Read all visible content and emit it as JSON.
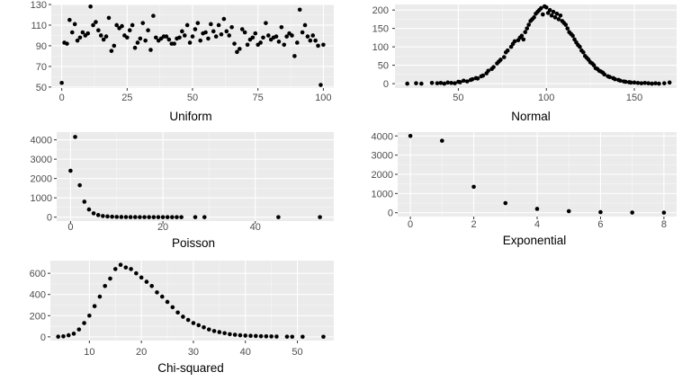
{
  "style": {
    "panel_bg": "#ebebeb",
    "grid_major": "#ffffff",
    "point_color": "#000000",
    "tick_text": "#4d4d4d"
  },
  "chart_data": [
    {
      "id": "uniform",
      "type": "scatter",
      "xlabel": "Uniform",
      "ylabel": "",
      "xlim": [
        -4,
        104
      ],
      "ylim": [
        49,
        130
      ],
      "xticks": [
        0,
        25,
        50,
        75,
        100
      ],
      "yticks": [
        50,
        70,
        90,
        110,
        130
      ],
      "grid": true,
      "x": [
        0,
        1,
        2,
        3,
        4,
        5,
        6,
        7,
        8,
        9,
        10,
        11,
        12,
        13,
        14,
        15,
        16,
        17,
        18,
        19,
        20,
        21,
        22,
        23,
        24,
        25,
        26,
        27,
        28,
        29,
        30,
        31,
        32,
        33,
        34,
        35,
        36,
        37,
        38,
        39,
        40,
        41,
        42,
        43,
        44,
        45,
        46,
        47,
        48,
        49,
        50,
        51,
        52,
        53,
        54,
        55,
        56,
        57,
        58,
        59,
        60,
        61,
        62,
        63,
        64,
        65,
        66,
        67,
        68,
        69,
        70,
        71,
        72,
        73,
        74,
        75,
        76,
        77,
        78,
        79,
        80,
        81,
        82,
        83,
        84,
        85,
        86,
        87,
        88,
        89,
        90,
        91,
        92,
        93,
        94,
        95,
        96,
        97,
        98,
        99,
        100
      ],
      "y": [
        54,
        93,
        92,
        115,
        103,
        111,
        95,
        98,
        103,
        100,
        102,
        128,
        110,
        113,
        105,
        100,
        96,
        99,
        117,
        85,
        90,
        110,
        107,
        109,
        100,
        98,
        105,
        110,
        88,
        93,
        97,
        112,
        95,
        105,
        86,
        119,
        98,
        95,
        97,
        99,
        99,
        96,
        92,
        92,
        97,
        98,
        104,
        100,
        110,
        93,
        99,
        106,
        112,
        95,
        102,
        103,
        97,
        111,
        104,
        99,
        110,
        101,
        116,
        104,
        100,
        108,
        92,
        84,
        87,
        106,
        103,
        91,
        96,
        98,
        102,
        91,
        93,
        98,
        112,
        100,
        96,
        98,
        99,
        94,
        108,
        91,
        99,
        102,
        100,
        80,
        93,
        125,
        103,
        110,
        99,
        95,
        100,
        95,
        90,
        52,
        91
      ]
    },
    {
      "id": "normal",
      "type": "scatter",
      "xlabel": "Normal",
      "ylabel": "",
      "xlim": [
        14,
        174
      ],
      "ylim": [
        -12,
        215
      ],
      "xticks": [
        50,
        100,
        150
      ],
      "yticks": [
        0,
        50,
        100,
        150,
        200
      ],
      "grid": true,
      "x": [
        21,
        26,
        29,
        35,
        38,
        40,
        42,
        44,
        46,
        48,
        50,
        51,
        53,
        55,
        57,
        58,
        60,
        61,
        63,
        64,
        66,
        67,
        69,
        70,
        72,
        73,
        74,
        76,
        77,
        78,
        80,
        81,
        82,
        84,
        85,
        86,
        87,
        88,
        89,
        90,
        91,
        92,
        93,
        94,
        95,
        96,
        97,
        98,
        99,
        100,
        101,
        102,
        103,
        104,
        105,
        106,
        107,
        108,
        109,
        110,
        111,
        112,
        113,
        114,
        115,
        116,
        117,
        118,
        119,
        120,
        121,
        122,
        123,
        124,
        125,
        126,
        127,
        128,
        129,
        130,
        131,
        132,
        133,
        135,
        136,
        138,
        139,
        141,
        142,
        144,
        145,
        147,
        148,
        150,
        152,
        154,
        156,
        158,
        160,
        162,
        164,
        167,
        170
      ],
      "y": [
        0,
        1,
        0,
        2,
        1,
        2,
        0,
        3,
        2,
        1,
        5,
        4,
        8,
        6,
        10,
        12,
        15,
        14,
        20,
        22,
        28,
        35,
        40,
        45,
        55,
        60,
        65,
        72,
        85,
        90,
        100,
        108,
        115,
        118,
        125,
        130,
        120,
        140,
        150,
        160,
        170,
        175,
        180,
        190,
        195,
        200,
        205,
        188,
        210,
        207,
        192,
        200,
        185,
        195,
        180,
        190,
        175,
        185,
        170,
        165,
        160,
        150,
        140,
        135,
        130,
        120,
        112,
        105,
        100,
        90,
        85,
        75,
        70,
        65,
        58,
        55,
        50,
        42,
        40,
        35,
        33,
        30,
        25,
        20,
        18,
        15,
        12,
        10,
        8,
        6,
        5,
        4,
        3,
        3,
        2,
        1,
        2,
        1,
        0,
        1,
        0,
        1,
        3
      ]
    },
    {
      "id": "poisson",
      "type": "scatter",
      "xlabel": "Poisson",
      "ylabel": "",
      "xlim": [
        -3,
        57
      ],
      "ylim": [
        -200,
        4400
      ],
      "xticks": [
        0,
        20,
        40
      ],
      "yticks": [
        0,
        1000,
        2000,
        3000,
        4000
      ],
      "grid": true,
      "x": [
        0,
        1,
        2,
        3,
        4,
        5,
        6,
        7,
        8,
        9,
        10,
        11,
        12,
        13,
        14,
        15,
        16,
        17,
        18,
        19,
        20,
        21,
        22,
        23,
        24,
        27,
        29,
        45,
        54
      ],
      "y": [
        2400,
        4150,
        1650,
        800,
        400,
        200,
        110,
        60,
        40,
        25,
        15,
        10,
        8,
        5,
        4,
        3,
        3,
        2,
        2,
        1,
        1,
        1,
        1,
        1,
        1,
        1,
        1,
        1,
        1
      ]
    },
    {
      "id": "exponential",
      "type": "scatter",
      "xlabel": "Exponential",
      "ylabel": "",
      "xlim": [
        -0.4,
        8.4
      ],
      "ylim": [
        -200,
        4200
      ],
      "xticks": [
        0,
        2,
        4,
        6,
        8
      ],
      "yticks": [
        0,
        1000,
        2000,
        3000,
        4000
      ],
      "grid": true,
      "x": [
        0,
        1,
        2,
        3,
        4,
        5,
        6,
        7,
        8
      ],
      "y": [
        4000,
        3750,
        1350,
        500,
        200,
        80,
        30,
        10,
        5
      ]
    },
    {
      "id": "chisq",
      "type": "scatter",
      "xlabel": "Chi-squared",
      "ylabel": "",
      "xlim": [
        2.5,
        57
      ],
      "ylim": [
        -35,
        720
      ],
      "xticks": [
        10,
        20,
        30,
        40,
        50
      ],
      "yticks": [
        0,
        200,
        400,
        600
      ],
      "grid": true,
      "x": [
        4,
        5,
        6,
        7,
        8,
        9,
        10,
        11,
        12,
        13,
        14,
        15,
        16,
        17,
        18,
        19,
        20,
        21,
        22,
        23,
        24,
        25,
        26,
        27,
        28,
        29,
        30,
        31,
        32,
        33,
        34,
        35,
        36,
        37,
        38,
        39,
        40,
        41,
        42,
        43,
        44,
        45,
        46,
        48,
        49,
        51,
        55
      ],
      "y": [
        2,
        5,
        15,
        30,
        70,
        130,
        200,
        290,
        380,
        480,
        550,
        640,
        680,
        655,
        640,
        600,
        560,
        520,
        480,
        420,
        380,
        330,
        280,
        230,
        190,
        160,
        130,
        110,
        90,
        70,
        55,
        45,
        35,
        25,
        20,
        15,
        12,
        10,
        8,
        6,
        5,
        4,
        3,
        2,
        1,
        1,
        1
      ]
    }
  ]
}
